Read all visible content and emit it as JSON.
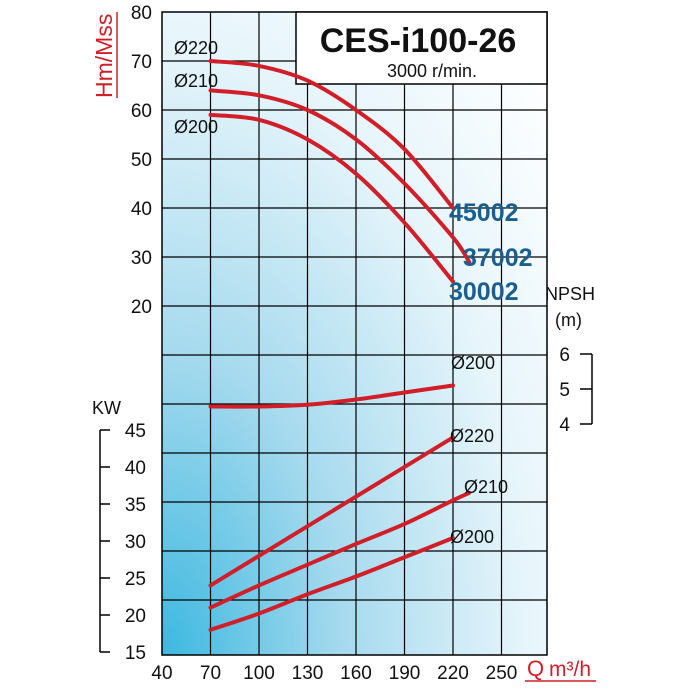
{
  "chart_data": {
    "type": "line",
    "title": "CES-i100-26",
    "subtitle": "3000 r/min.",
    "x_axis": {
      "label_prefix": "Q",
      "label_unit": "m³/h",
      "ticks": [
        "40",
        "70",
        "100",
        "130",
        "160",
        "190",
        "220",
        "250"
      ],
      "range": [
        40,
        250
      ]
    },
    "head_axis": {
      "label": "Hm/Mss",
      "ticks": [
        "80",
        "70",
        "60",
        "50",
        "40",
        "30",
        "20"
      ],
      "range": [
        20,
        80
      ]
    },
    "kw_axis": {
      "label": "KW",
      "ticks": [
        "45",
        "40",
        "35",
        "30",
        "25",
        "20",
        "15"
      ],
      "range": [
        15,
        45
      ]
    },
    "npsh_axis": {
      "label_line1": "NPSH",
      "label_line2": "(m)",
      "ticks": [
        "6",
        "5",
        "4"
      ],
      "range": [
        4,
        6
      ]
    },
    "head_curves": [
      {
        "diameter_label": "Ø220",
        "model": "45002",
        "points": [
          [
            70,
            70
          ],
          [
            100,
            69
          ],
          [
            130,
            66
          ],
          [
            160,
            60
          ],
          [
            190,
            52
          ],
          [
            220,
            40
          ]
        ]
      },
      {
        "diameter_label": "Ø210",
        "model": "37002",
        "points": [
          [
            70,
            64
          ],
          [
            100,
            63
          ],
          [
            130,
            60
          ],
          [
            160,
            54
          ],
          [
            190,
            45
          ],
          [
            220,
            34
          ],
          [
            230,
            29
          ]
        ]
      },
      {
        "diameter_label": "Ø200",
        "model": "30002",
        "points": [
          [
            70,
            59
          ],
          [
            100,
            58
          ],
          [
            130,
            54
          ],
          [
            160,
            47
          ],
          [
            190,
            37
          ],
          [
            220,
            25
          ]
        ]
      }
    ],
    "npsh_curve": {
      "label": "Ø200",
      "points": [
        [
          70,
          4.5
        ],
        [
          100,
          4.5
        ],
        [
          130,
          4.55
        ],
        [
          160,
          4.7
        ],
        [
          190,
          4.9
        ],
        [
          220,
          5.1
        ]
      ]
    },
    "power_curves": [
      {
        "label": "Ø220",
        "points": [
          [
            70,
            24
          ],
          [
            220,
            44
          ]
        ]
      },
      {
        "label": "Ø210",
        "points": [
          [
            70,
            21
          ],
          [
            100,
            24
          ],
          [
            130,
            26.8
          ],
          [
            160,
            29.6
          ],
          [
            190,
            32.3
          ],
          [
            220,
            35.5
          ],
          [
            230,
            36.5
          ]
        ]
      },
      {
        "label": "Ø200",
        "points": [
          [
            70,
            18
          ],
          [
            100,
            20.2
          ],
          [
            130,
            22.8
          ],
          [
            160,
            25.2
          ],
          [
            190,
            27.8
          ],
          [
            220,
            30.4
          ]
        ]
      }
    ],
    "grid": true
  }
}
